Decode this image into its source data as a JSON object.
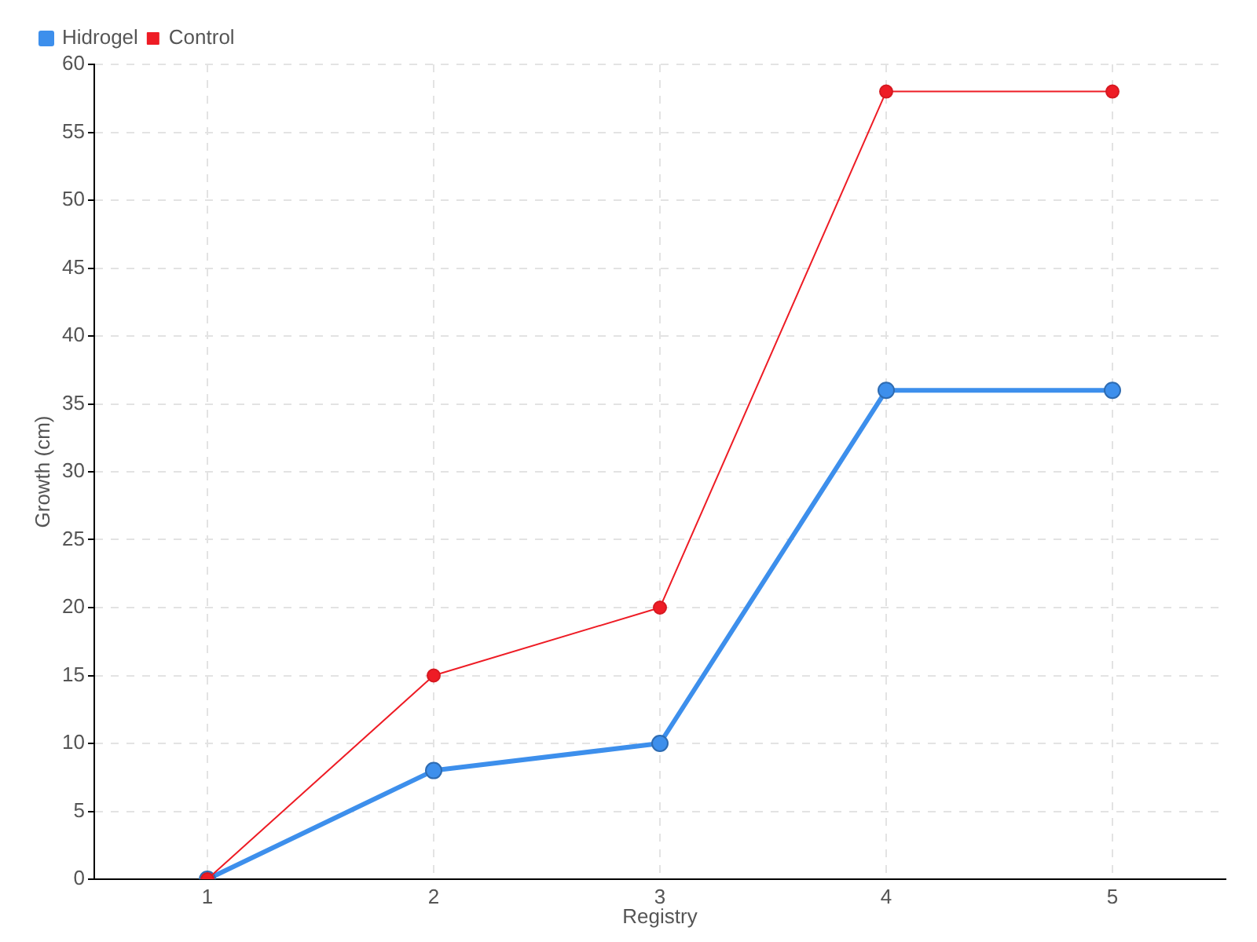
{
  "chart_data": {
    "type": "line",
    "xlabel": "Registry",
    "ylabel": "Growth (cm)",
    "categories": [
      "1",
      "2",
      "3",
      "4",
      "5"
    ],
    "series": [
      {
        "name": "Hidrogel",
        "color": "#3d8fec",
        "values": [
          0,
          8,
          10,
          36,
          36
        ]
      },
      {
        "name": "Control",
        "color": "#ee1c25",
        "values": [
          0,
          15,
          20,
          58,
          58
        ]
      }
    ],
    "ylim": [
      0,
      60
    ],
    "yticks": [
      0,
      5,
      10,
      15,
      20,
      25,
      30,
      35,
      40,
      45,
      50,
      55,
      60
    ],
    "grid": true,
    "legend": "top left",
    "marker": "circle",
    "line_style": "solid"
  }
}
